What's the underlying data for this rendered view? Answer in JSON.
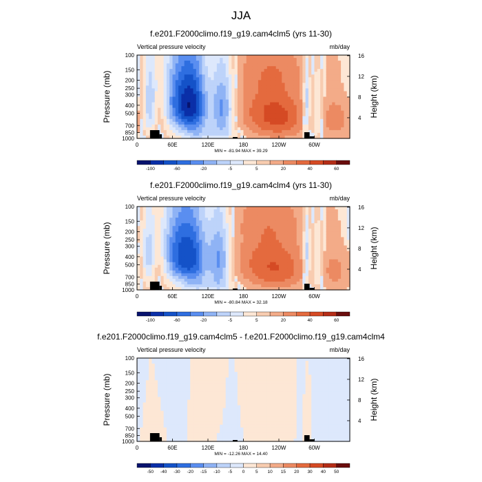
{
  "figure": {
    "title": "JJA"
  },
  "chart_data": [
    {
      "type": "heatmap",
      "title": "f.e201.F2000climo.f19_g19.cam4clm5 (yrs 11-30)",
      "left_subtitle": "Vertical pressure velocity",
      "right_subtitle": "mb/day",
      "xlabel": "",
      "ylabel": "Pressure (mb)",
      "right_ylabel": "Height (km)",
      "x_ticks": [
        "0",
        "60E",
        "120E",
        "180",
        "120W",
        "60W"
      ],
      "x_tick_values": [
        0,
        60,
        120,
        180,
        240,
        300
      ],
      "xlim": [
        0,
        360
      ],
      "y_ticks": [
        "100",
        "150",
        "200",
        "250",
        "300",
        "400",
        "500",
        "700",
        "850",
        "1000"
      ],
      "y_tick_values": [
        100,
        150,
        200,
        250,
        300,
        400,
        500,
        700,
        850,
        1000
      ],
      "ylim": [
        1000,
        100
      ],
      "right_y_ticks": [
        "16",
        "12",
        "8",
        "4"
      ],
      "right_y_tick_values": [
        16,
        12,
        8,
        4
      ],
      "min_max_text": "MIN = -81.94  MAX = 39.29",
      "colorbar": {
        "labels": [
          "-100",
          "-60",
          "-20",
          "-5",
          "5",
          "20",
          "40",
          "60"
        ],
        "colors": [
          "#08136e",
          "#0a2fa8",
          "#1452c8",
          "#2e6ee0",
          "#5a8ef0",
          "#8fb3f5",
          "#bdd3fa",
          "#dde8fc",
          "#fde7d5",
          "#f8ccb0",
          "#f3ab88",
          "#ec8a62",
          "#e46a3e",
          "#d54a24",
          "#b52d17",
          "#6a0d0d"
        ]
      },
      "field_features": [
        {
          "lon": 38,
          "p": 500,
          "value": 15,
          "w": 10,
          "dp": 240
        },
        {
          "lon": 22,
          "p": 420,
          "value": -40,
          "w": 8,
          "dp": 300
        },
        {
          "lon": 75,
          "p": 380,
          "value": -75,
          "w": 22,
          "dp": 280
        },
        {
          "lon": 100,
          "p": 450,
          "value": -50,
          "w": 16,
          "dp": 340
        },
        {
          "lon": 145,
          "p": 450,
          "value": -60,
          "w": 14,
          "dp": 320
        },
        {
          "lon": 125,
          "p": 900,
          "value": -20,
          "w": 35,
          "dp": 120
        },
        {
          "lon": 220,
          "p": 470,
          "value": 30,
          "w": 40,
          "dp": 330
        },
        {
          "lon": 250,
          "p": 600,
          "value": 18,
          "w": 30,
          "dp": 260
        },
        {
          "lon": 287,
          "p": 420,
          "value": -45,
          "w": 4,
          "dp": 320
        },
        {
          "lon": 305,
          "p": 520,
          "value": -30,
          "w": 7,
          "dp": 320
        },
        {
          "lon": 335,
          "p": 600,
          "value": 20,
          "w": 18,
          "dp": 260
        },
        {
          "lon": 0,
          "p": 180,
          "value": -5,
          "w": 120,
          "dp": 90
        },
        {
          "lon": 250,
          "p": 150,
          "value": 8,
          "w": 80,
          "dp": 70
        }
      ]
    },
    {
      "type": "heatmap",
      "title": "f.e201.F2000climo.f19_g19.cam4clm4 (yrs 11-30)",
      "left_subtitle": "Vertical pressure velocity",
      "right_subtitle": "mb/day",
      "xlabel": "",
      "ylabel": "Pressure (mb)",
      "right_ylabel": "Height (km)",
      "x_ticks": [
        "0",
        "60E",
        "120E",
        "180",
        "120W",
        "60W"
      ],
      "x_tick_values": [
        0,
        60,
        120,
        180,
        240,
        300
      ],
      "xlim": [
        0,
        360
      ],
      "y_ticks": [
        "100",
        "150",
        "200",
        "250",
        "300",
        "400",
        "500",
        "700",
        "850",
        "1000"
      ],
      "y_tick_values": [
        100,
        150,
        200,
        250,
        300,
        400,
        500,
        700,
        850,
        1000
      ],
      "ylim": [
        1000,
        100
      ],
      "right_y_ticks": [
        "16",
        "12",
        "8",
        "4"
      ],
      "right_y_tick_values": [
        16,
        12,
        8,
        4
      ],
      "min_max_text": "MIN = -80.84  MAX = 32.18",
      "colorbar": {
        "labels": [
          "-100",
          "-60",
          "-20",
          "-5",
          "5",
          "20",
          "40",
          "60"
        ],
        "colors": [
          "#08136e",
          "#0a2fa8",
          "#1452c8",
          "#2e6ee0",
          "#5a8ef0",
          "#8fb3f5",
          "#bdd3fa",
          "#dde8fc",
          "#fde7d5",
          "#f8ccb0",
          "#f3ab88",
          "#ec8a62",
          "#e46a3e",
          "#d54a24",
          "#b52d17",
          "#6a0d0d"
        ]
      },
      "field_features": [
        {
          "lon": 36,
          "p": 520,
          "value": 14,
          "w": 10,
          "dp": 240
        },
        {
          "lon": 20,
          "p": 420,
          "value": -35,
          "w": 8,
          "dp": 300
        },
        {
          "lon": 72,
          "p": 380,
          "value": -72,
          "w": 22,
          "dp": 280
        },
        {
          "lon": 100,
          "p": 470,
          "value": -45,
          "w": 16,
          "dp": 340
        },
        {
          "lon": 140,
          "p": 450,
          "value": -58,
          "w": 14,
          "dp": 330
        },
        {
          "lon": 125,
          "p": 900,
          "value": -18,
          "w": 35,
          "dp": 120
        },
        {
          "lon": 215,
          "p": 470,
          "value": 28,
          "w": 40,
          "dp": 330
        },
        {
          "lon": 250,
          "p": 600,
          "value": 16,
          "w": 30,
          "dp": 260
        },
        {
          "lon": 287,
          "p": 420,
          "value": -42,
          "w": 4,
          "dp": 320
        },
        {
          "lon": 305,
          "p": 520,
          "value": -28,
          "w": 7,
          "dp": 320
        },
        {
          "lon": 335,
          "p": 600,
          "value": 18,
          "w": 18,
          "dp": 260
        },
        {
          "lon": 0,
          "p": 180,
          "value": -5,
          "w": 120,
          "dp": 90
        },
        {
          "lon": 250,
          "p": 150,
          "value": 8,
          "w": 80,
          "dp": 70
        }
      ]
    },
    {
      "type": "heatmap",
      "title": "f.e201.F2000climo.f19_g19.cam4clm5 - f.e201.F2000climo.f19_g19.cam4clm4",
      "left_subtitle": "Vertical pressure velocity",
      "right_subtitle": "mb/day",
      "xlabel": "",
      "ylabel": "Pressure (mb)",
      "right_ylabel": "Height (km)",
      "x_ticks": [
        "0",
        "60E",
        "120E",
        "180",
        "120W",
        "60W"
      ],
      "x_tick_values": [
        0,
        60,
        120,
        180,
        240,
        300
      ],
      "xlim": [
        0,
        360
      ],
      "y_ticks": [
        "100",
        "150",
        "200",
        "250",
        "300",
        "400",
        "500",
        "700",
        "850",
        "1000"
      ],
      "y_tick_values": [
        100,
        150,
        200,
        250,
        300,
        400,
        500,
        700,
        850,
        1000
      ],
      "ylim": [
        1000,
        100
      ],
      "right_y_ticks": [
        "16",
        "12",
        "8",
        "4"
      ],
      "right_y_tick_values": [
        16,
        12,
        8,
        4
      ],
      "min_max_text": "MIN = -12.26  MAX = 14.40",
      "colorbar": {
        "labels": [
          "-50",
          "-40",
          "-30",
          "-20",
          "-15",
          "-10",
          "-5",
          "0",
          "5",
          "10",
          "15",
          "20",
          "30",
          "40",
          "50"
        ],
        "colors": [
          "#08136e",
          "#0a2fa8",
          "#1452c8",
          "#2e6ee0",
          "#5a8ef0",
          "#8fb3f5",
          "#bdd3fa",
          "#dde8fc",
          "#fde7d5",
          "#f8ccb0",
          "#f3ab88",
          "#ec8a62",
          "#e46a3e",
          "#d54a24",
          "#b52d17",
          "#6a0d0d"
        ]
      },
      "field_features": [
        {
          "lon": 30,
          "p": 700,
          "value": 2,
          "w": 10,
          "dp": 200
        },
        {
          "lon": 70,
          "p": 400,
          "value": -2,
          "w": 15,
          "dp": 300
        },
        {
          "lon": 100,
          "p": 500,
          "value": 2,
          "w": 12,
          "dp": 300
        },
        {
          "lon": 130,
          "p": 300,
          "value": 3,
          "w": 12,
          "dp": 250
        },
        {
          "lon": 160,
          "p": 600,
          "value": -3,
          "w": 12,
          "dp": 300
        },
        {
          "lon": 200,
          "p": 400,
          "value": 2,
          "w": 30,
          "dp": 300
        },
        {
          "lon": 290,
          "p": 600,
          "value": 8,
          "w": 4,
          "dp": 200
        },
        {
          "lon": 320,
          "p": 500,
          "value": -3,
          "w": 20,
          "dp": 300
        }
      ]
    }
  ]
}
